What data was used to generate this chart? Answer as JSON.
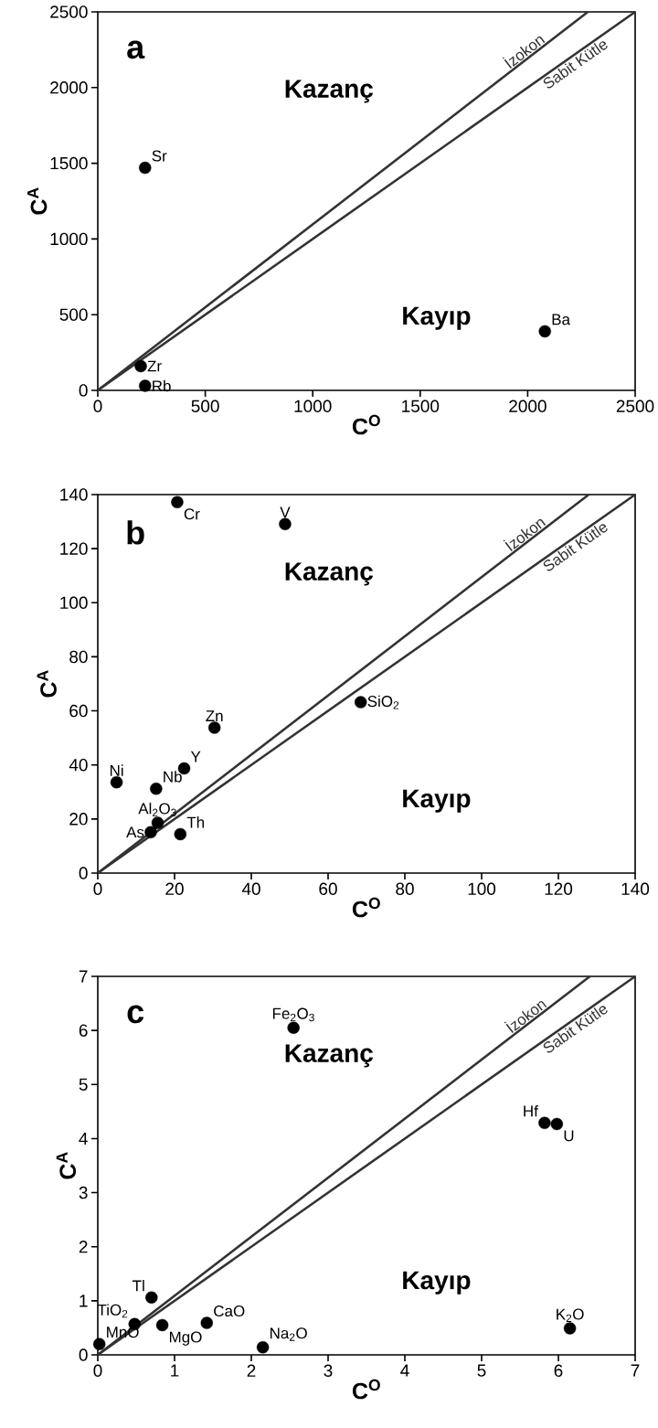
{
  "chart_data": [
    {
      "type": "scatter",
      "title": "a",
      "xlabel": "C$^{O}$",
      "ylabel": "C$^{A}$",
      "xlim": [
        0,
        2500
      ],
      "ylim": [
        0,
        2500
      ],
      "xticks": [
        0,
        500,
        1000,
        1500,
        2000,
        2500
      ],
      "yticks": [
        0,
        500,
        1000,
        1500,
        2000,
        2500
      ],
      "series": [
        {
          "color": "#000000",
          "marker": "circle",
          "x": [
            220,
            200,
            220,
            2080
          ],
          "values": [
            1470,
            160,
            30,
            390
          ]
        },
        {
          "name": "İzokon",
          "type": "line",
          "color": "#333333",
          "x": [
            0,
            2280
          ],
          "values": [
            0,
            2500
          ]
        },
        {
          "name": "Sabit Kütle",
          "type": "line",
          "color": "#333333",
          "x": [
            0,
            2500
          ],
          "values": [
            0,
            2500
          ]
        }
      ],
      "annotations": [
        "Kazanç",
        "Kayıp",
        {
          "text": "Sr",
          "x": 220,
          "y": 1470
        },
        {
          "text": "Zr",
          "x": 200,
          "y": 160
        },
        {
          "text": "Rb",
          "x": 220,
          "y": 30
        },
        {
          "text": "Ba",
          "x": 2080,
          "y": 390
        }
      ]
    },
    {
      "type": "scatter",
      "title": "b",
      "xlabel": "C$^{O}$",
      "ylabel": "C$^{A}$",
      "xlim": [
        0,
        140
      ],
      "ylim": [
        0,
        140
      ],
      "xticks": [
        0,
        20,
        40,
        60,
        80,
        100,
        120,
        140
      ],
      "yticks": [
        0,
        20,
        40,
        60,
        80,
        100,
        120,
        140
      ],
      "series": [
        {
          "color": "#000000",
          "marker": "circle",
          "x": [
            20.7,
            48.8,
            68.5,
            30.4,
            22.5,
            4.9,
            15.2,
            15.6,
            13.8,
            21.5
          ],
          "values": [
            137.2,
            129.1,
            63.2,
            53.8,
            38.7,
            33.6,
            31.2,
            18.6,
            15.1,
            14.4
          ]
        },
        {
          "name": "İzokon",
          "type": "line",
          "color": "#333333",
          "x": [
            0,
            127.9
          ],
          "values": [
            0,
            140
          ]
        },
        {
          "name": "Sabit Kütle",
          "type": "line",
          "color": "#333333",
          "x": [
            0,
            140
          ],
          "values": [
            0,
            140
          ]
        }
      ],
      "annotations": [
        "Kazanç",
        "Kayıp",
        {
          "text": "Cr",
          "x": 20.7,
          "y": 137.2
        },
        {
          "text": "V",
          "x": 48.8,
          "y": 129.1
        },
        {
          "text": "SiO$_{2}$",
          "x": 68.5,
          "y": 63.2
        },
        {
          "text": "Zn",
          "x": 30.4,
          "y": 53.8
        },
        {
          "text": "Y",
          "x": 22.5,
          "y": 38.7
        },
        {
          "text": "Ni",
          "x": 4.9,
          "y": 33.6
        },
        {
          "text": "Nb",
          "x": 15.2,
          "y": 31.2
        },
        {
          "text": "Al$_{2}$O$_{3}$",
          "x": 15.6,
          "y": 18.6
        },
        {
          "text": "As",
          "x": 13.8,
          "y": 15.1
        },
        {
          "text": "Th",
          "x": 21.5,
          "y": 14.4
        }
      ]
    },
    {
      "type": "scatter",
      "title": "c",
      "xlabel": "C$^{O}$",
      "ylabel": "C$^{A}$",
      "xlim": [
        0,
        7
      ],
      "ylim": [
        0,
        7
      ],
      "xticks": [
        0,
        1,
        2,
        3,
        4,
        5,
        6,
        7
      ],
      "yticks": [
        0,
        1,
        2,
        3,
        4,
        5,
        6,
        7
      ],
      "series": [
        {
          "color": "#000000",
          "marker": "circle",
          "x": [
            2.55,
            5.82,
            5.98,
            0.7,
            0.48,
            0.84,
            1.42,
            2.15,
            6.15,
            0.02
          ],
          "values": [
            6.05,
            4.29,
            4.27,
            1.06,
            0.57,
            0.55,
            0.59,
            0.14,
            0.49,
            0.2
          ]
        },
        {
          "name": "İzokon",
          "type": "line",
          "color": "#333333",
          "x": [
            0,
            6.41
          ],
          "values": [
            0,
            7
          ]
        },
        {
          "name": "Sabit Kütle",
          "type": "line",
          "color": "#333333",
          "x": [
            0,
            7
          ],
          "values": [
            0,
            7
          ]
        }
      ],
      "annotations": [
        "Kazanç",
        "Kayıp",
        {
          "text": "Fe$_{2}$O$_{3}$",
          "x": 2.55,
          "y": 6.05
        },
        {
          "text": "Hf",
          "x": 5.82,
          "y": 4.29
        },
        {
          "text": "U",
          "x": 5.98,
          "y": 4.27
        },
        {
          "text": "Tl",
          "x": 0.7,
          "y": 1.06
        },
        {
          "text": "TiO$_{2}$",
          "x": 0.48,
          "y": 0.57
        },
        {
          "text": "MgO",
          "x": 0.84,
          "y": 0.55
        },
        {
          "text": "CaO",
          "x": 1.42,
          "y": 0.59
        },
        {
          "text": "Na$_{2}$O",
          "x": 2.15,
          "y": 0.14
        },
        {
          "text": "K$_{2}$O",
          "x": 6.15,
          "y": 0.49
        },
        {
          "text": "MnO",
          "x": 0.02,
          "y": 0.2
        }
      ]
    }
  ]
}
